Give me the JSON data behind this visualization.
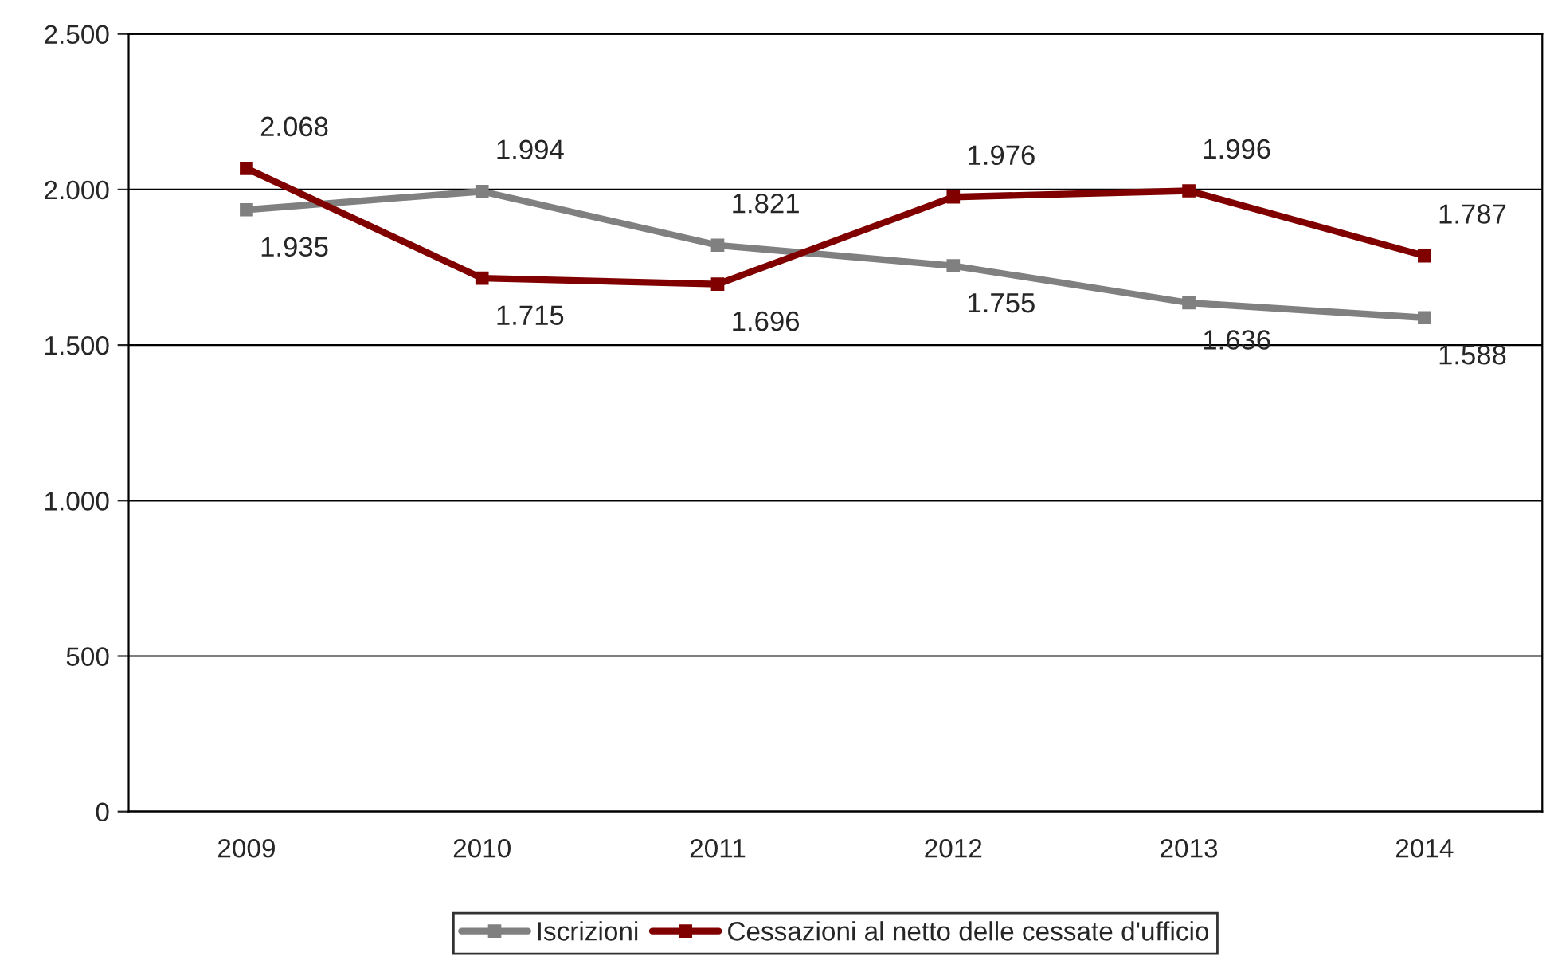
{
  "chart_data": {
    "type": "line",
    "categories": [
      "2009",
      "2010",
      "2011",
      "2012",
      "2013",
      "2014"
    ],
    "series": [
      {
        "name": "Iscrizioni",
        "color": "#808080",
        "values": [
          1935,
          1994,
          1821,
          1755,
          1636,
          1588
        ],
        "value_labels": [
          "1.935",
          "1.994",
          "1.821",
          "1.755",
          "1.636",
          "1.588"
        ]
      },
      {
        "name": "Cessazioni al netto delle cessate d'ufficio",
        "color": "#800000",
        "values": [
          2068,
          1715,
          1696,
          1976,
          1996,
          1787
        ],
        "value_labels": [
          "2.068",
          "1.715",
          "1.696",
          "1.976",
          "1.996",
          "1.787"
        ]
      }
    ],
    "ylim": [
      0,
      2500
    ],
    "yticks": [
      0,
      {
        "value": 500,
        "label": "500"
      },
      {
        "value": 1000,
        "label": "1.000"
      },
      {
        "value": 1500,
        "label": "1.500"
      },
      {
        "value": 2000,
        "label": "2.000"
      },
      {
        "value": 2500,
        "label": "2.500"
      }
    ],
    "grid": "y",
    "legend": "bottom",
    "marker": "square",
    "line_style": "solid"
  }
}
